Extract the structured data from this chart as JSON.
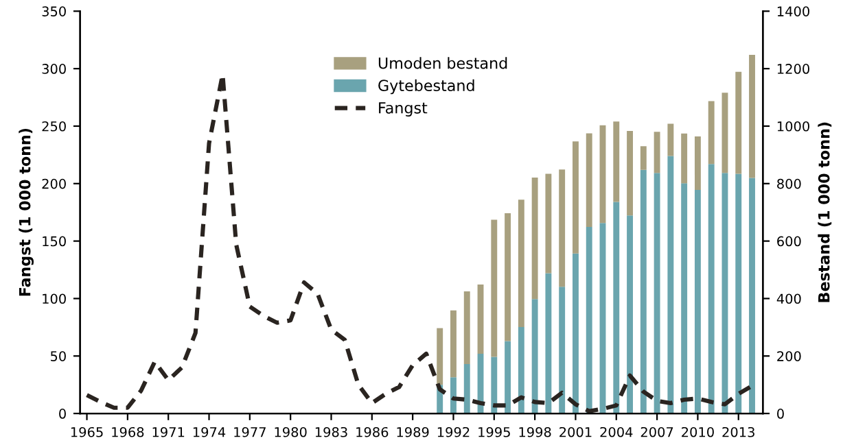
{
  "chart_data": {
    "type": "bar",
    "stacked": true,
    "xlabel": null,
    "ylabel": "Fangst (1 000 tonn)",
    "y2label": "Bestand (1 000 tonn)",
    "xlim": [
      1964.5,
      2014.8
    ],
    "xticks": [
      1965,
      1968,
      1971,
      1974,
      1977,
      1980,
      1983,
      1986,
      1989,
      1992,
      1995,
      1998,
      2001,
      2004,
      2007,
      2010,
      2013
    ],
    "ylim": [
      0,
      350
    ],
    "yticks": [
      0,
      50,
      100,
      150,
      200,
      250,
      300,
      350
    ],
    "y2lim": [
      0,
      1400
    ],
    "y2ticks": [
      0,
      200,
      400,
      600,
      800,
      1000,
      1200,
      1400
    ],
    "legend": "top",
    "grid": false,
    "series": [
      {
        "name": "Gytebestand",
        "axis": "y2",
        "color": "#6aa5ae",
        "x": [
          1991,
          1992,
          1993,
          1994,
          1995,
          1996,
          1997,
          1998,
          1999,
          2000,
          2001,
          2002,
          2003,
          2004,
          2005,
          2006,
          2007,
          2008,
          2009,
          2010,
          2011,
          2012,
          2013,
          2014
        ],
        "values": [
          100,
          126,
          172,
          208,
          197,
          252,
          301,
          398,
          488,
          441,
          557,
          649,
          663,
          736,
          689,
          848,
          837,
          896,
          801,
          778,
          868,
          837,
          834,
          820
        ]
      },
      {
        "name": "Umoden bestand",
        "axis": "y2",
        "color": "#a8a07f",
        "x": [
          1991,
          1992,
          1993,
          1994,
          1995,
          1996,
          1997,
          1998,
          1999,
          2000,
          2001,
          2002,
          2003,
          2004,
          2005,
          2006,
          2007,
          2008,
          2009,
          2010,
          2011,
          2012,
          2013,
          2014
        ],
        "values": [
          197,
          233,
          253,
          241,
          477,
          445,
          443,
          423,
          346,
          408,
          390,
          326,
          340,
          280,
          294,
          82,
          143,
          112,
          173,
          186,
          219,
          279,
          355,
          428
        ]
      },
      {
        "name": "Fangst",
        "type": "line",
        "axis": "y",
        "color": "#2a2420",
        "line_style": "dashed",
        "x": [
          1965,
          1966,
          1967,
          1968,
          1969,
          1970,
          1971,
          1972,
          1973,
          1974,
          1975,
          1976,
          1977,
          1978,
          1979,
          1980,
          1981,
          1982,
          1983,
          1984,
          1985,
          1986,
          1987,
          1988,
          1989,
          1990,
          1991,
          1992,
          1993,
          1994,
          1995,
          1996,
          1997,
          1998,
          1999,
          2000,
          2001,
          2002,
          2003,
          2004,
          2005,
          2006,
          2007,
          2008,
          2009,
          2010,
          2011,
          2012,
          2013,
          2014
        ],
        "values": [
          16,
          10,
          5,
          5,
          20,
          45,
          29,
          40,
          70,
          235,
          295,
          147,
          93,
          85,
          79,
          81,
          114,
          104,
          73,
          64,
          25,
          9,
          17,
          23,
          42,
          52,
          21,
          13,
          12,
          9,
          7,
          7,
          14,
          10,
          9,
          18,
          8,
          2,
          4,
          7,
          33,
          19,
          11,
          9,
          12,
          13,
          10,
          8,
          17,
          24
        ]
      }
    ]
  }
}
